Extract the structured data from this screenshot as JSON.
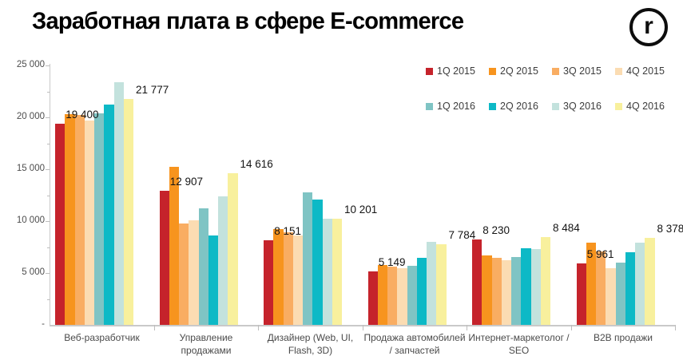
{
  "header": {
    "title": "Заработная плата в сфере E-commerce",
    "logo_letter": "r"
  },
  "chart_data": {
    "type": "bar",
    "title": "Заработная плата в сфере E-commerce",
    "xlabel": "",
    "ylabel": "",
    "ylim": [
      0,
      25000
    ],
    "grid": false,
    "legend_position": "top-right",
    "categories": [
      "Веб-разработчик",
      "Управление продажами",
      "Дизайнер (Web, UI, Flash, 3D)",
      "Продажа автомобилей / запчастей",
      "Интернет-маркетолог / SEO",
      "B2B продажи"
    ],
    "series": [
      {
        "name": "1Q 2015",
        "color": "#c5232b",
        "values": [
          19400,
          12907,
          8151,
          5149,
          8230,
          5961
        ]
      },
      {
        "name": "2Q 2015",
        "color": "#f7941e",
        "values": [
          20300,
          15200,
          9250,
          5750,
          6700,
          7900
        ]
      },
      {
        "name": "3Q 2015",
        "color": "#f9ad62",
        "values": [
          20200,
          9800,
          8900,
          5650,
          6450,
          7100
        ]
      },
      {
        "name": "4Q 2015",
        "color": "#fbdcb2",
        "values": [
          19700,
          10100,
          8600,
          5450,
          6200,
          5500
        ]
      },
      {
        "name": "1Q 2016",
        "color": "#7fc4c4",
        "values": [
          20350,
          11200,
          12750,
          5700,
          6550,
          6000
        ]
      },
      {
        "name": "2Q 2016",
        "color": "#0db9c6",
        "values": [
          21200,
          8650,
          12050,
          6500,
          7400,
          7000
        ]
      },
      {
        "name": "3Q 2016",
        "color": "#c3e2dd",
        "values": [
          23350,
          12350,
          10200,
          8000,
          7300,
          7950
        ]
      },
      {
        "name": "4Q 2016",
        "color": "#f8f09d",
        "values": [
          21777,
          14616,
          10201,
          7784,
          8484,
          8378
        ]
      }
    ],
    "y_ticks": [
      {
        "value": 0,
        "label": "-"
      },
      {
        "value": 5000,
        "label": "5 000"
      },
      {
        "value": 10000,
        "label": "10 000"
      },
      {
        "value": 15000,
        "label": "15 000"
      },
      {
        "value": 20000,
        "label": "20 000"
      },
      {
        "value": 25000,
        "label": "25 000"
      }
    ],
    "data_labels": {
      "first_series": [
        "19 400",
        "12 907",
        "8 151",
        "5 149",
        "8 230",
        "5 961"
      ],
      "last_series": [
        "21 777",
        "14 616",
        "10 201",
        "7 784",
        "8 484",
        "8 378"
      ]
    }
  }
}
